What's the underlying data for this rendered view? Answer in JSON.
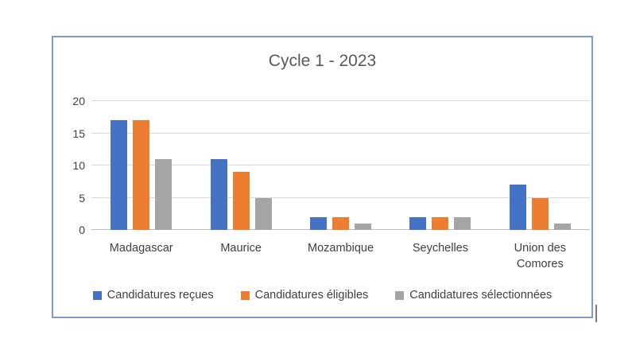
{
  "chart_data": {
    "type": "bar",
    "title": "Cycle 1 - 2023",
    "categories": [
      "Madagascar",
      "Maurice",
      "Mozambique",
      "Seychelles",
      "Union des Comores"
    ],
    "series": [
      {
        "name": "Candidatures reçues",
        "color": "#4472C4",
        "values": [
          17,
          11,
          2,
          2,
          7
        ]
      },
      {
        "name": "Candidatures éligibles",
        "color": "#ED7D31",
        "values": [
          17,
          9,
          2,
          2,
          5
        ]
      },
      {
        "name": "Candidatures sélectionnées",
        "color": "#A5A5A5",
        "values": [
          11,
          5,
          1,
          2,
          1
        ]
      }
    ],
    "xlabel": "",
    "ylabel": "",
    "ylim": [
      0,
      20
    ],
    "yticks": [
      0,
      5,
      10,
      15,
      20
    ],
    "grid": true,
    "legend_position": "bottom"
  },
  "colors": {
    "frame_border": "#7d9bc4",
    "title_text": "#595959",
    "axis_text": "#404040",
    "gridline": "#d9d9d9",
    "axis_line": "#bfbfbf"
  }
}
